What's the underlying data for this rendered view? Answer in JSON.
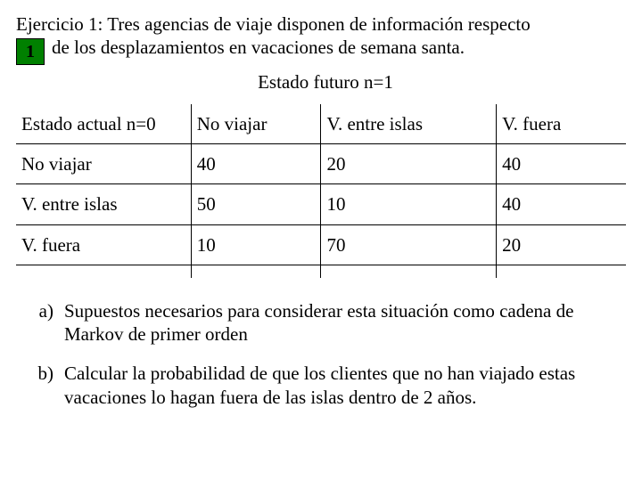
{
  "intro": {
    "line1": "Ejercicio 1: Tres agencias de viaje disponen de información respecto",
    "line2": "de los desplazamientos en vacaciones de semana santa."
  },
  "badge": "1",
  "caption": "Estado futuro  n=1",
  "table": {
    "header": {
      "c0": "Estado actual n=0",
      "c1": "No viajar",
      "c2": "V. entre islas",
      "c3": "V. fuera"
    },
    "rows": [
      {
        "c0": "No viajar",
        "c1": "40",
        "c2": "20",
        "c3": "40"
      },
      {
        "c0": "V. entre islas",
        "c1": "50",
        "c2": "10",
        "c3": "40"
      },
      {
        "c0": "V. fuera",
        "c1": "10",
        "c2": "70",
        "c3": "20"
      }
    ]
  },
  "questions": {
    "a": {
      "marker": "a)",
      "text": "Supuestos necesarios para considerar esta situación como cadena de Markov de primer orden"
    },
    "b": {
      "marker": "b)",
      "text": "Calcular la probabilidad de que los clientes que no han viajado estas vacaciones lo hagan fuera de las islas dentro de 2 años."
    }
  },
  "colors": {
    "badge_bg": "#008000",
    "border": "#000000",
    "text": "#000000",
    "background": "#ffffff"
  },
  "typography": {
    "font_family": "Times New Roman",
    "body_fontsize_pt": 16
  }
}
